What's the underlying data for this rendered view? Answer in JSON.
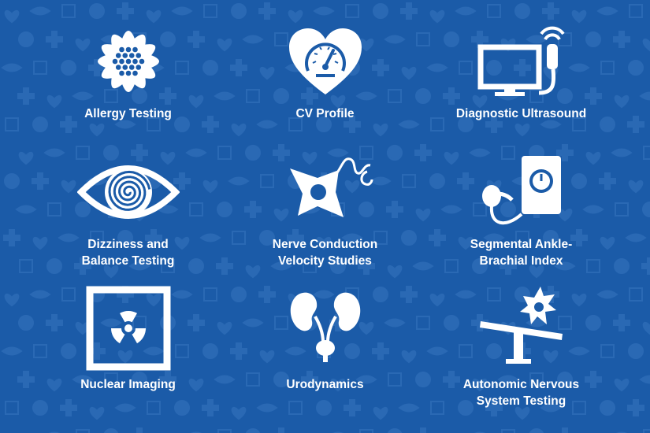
{
  "colors": {
    "background": "#1b5ba8",
    "pattern": "#2a69b4",
    "foreground": "#ffffff"
  },
  "services": [
    {
      "label": "Allergy Testing",
      "icon": "pollen-flower-icon"
    },
    {
      "label": "CV Profile",
      "icon": "heart-gauge-icon"
    },
    {
      "label": "Diagnostic Ultrasound",
      "icon": "monitor-probe-icon"
    },
    {
      "label": "Dizziness and\nBalance Testing",
      "icon": "spiral-eye-icon"
    },
    {
      "label": "Nerve Conduction\nVelocity Studies",
      "icon": "nerve-cell-icon"
    },
    {
      "label": "Segmental Ankle-\nBrachial Index",
      "icon": "blood-pressure-cuff-icon"
    },
    {
      "label": "Nuclear Imaging",
      "icon": "radiation-sign-icon"
    },
    {
      "label": "Urodynamics",
      "icon": "kidneys-bladder-icon"
    },
    {
      "label": "Autonomic Nervous\nSystem Testing",
      "icon": "tilt-table-neuron-icon"
    }
  ]
}
